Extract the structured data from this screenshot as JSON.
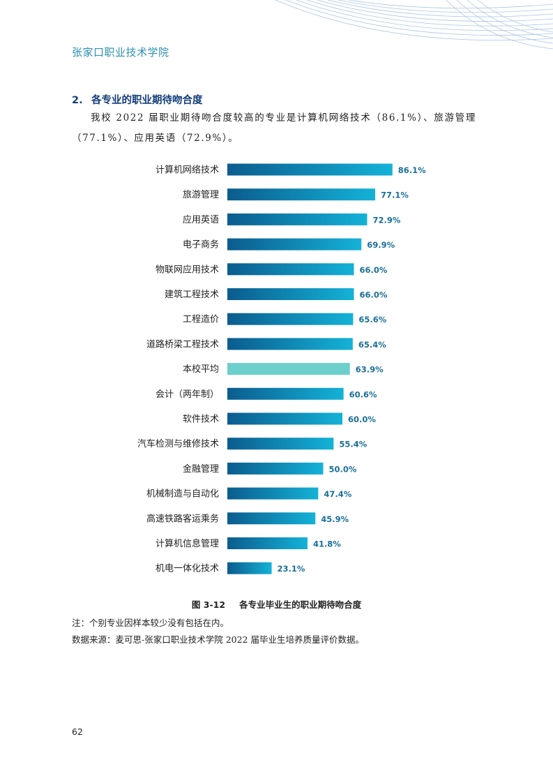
{
  "header": {
    "school_name": "张家口职业技术学院"
  },
  "section": {
    "number": "2.",
    "title": "各专业的职业期待吻合度"
  },
  "paragraph": "我校 2022 届职业期待吻合度较高的专业是计算机网络技术（86.1%）、旅游管理（77.1%）、应用英语（72.9%）。",
  "chart_data": {
    "type": "bar",
    "orientation": "horizontal",
    "categories": [
      "计算机网络技术",
      "旅游管理",
      "应用英语",
      "电子商务",
      "物联网应用技术",
      "建筑工程技术",
      "工程造价",
      "道路桥梁工程技术",
      "本校平均",
      "会计（两年制）",
      "软件技术",
      "汽车检测与维修技术",
      "金融管理",
      "机械制造与自动化",
      "高速铁路客运乘务",
      "计算机信息管理",
      "机电一体化技术"
    ],
    "values": [
      86.1,
      77.1,
      72.9,
      69.9,
      66.0,
      66.0,
      65.6,
      65.4,
      63.9,
      60.6,
      60.0,
      55.4,
      50.0,
      47.4,
      45.9,
      41.8,
      23.1
    ],
    "value_labels": [
      "86.1%",
      "77.1%",
      "72.9%",
      "69.9%",
      "66.0%",
      "66.0%",
      "65.6%",
      "65.4%",
      "63.9%",
      "60.6%",
      "60.0%",
      "55.4%",
      "50.0%",
      "47.4%",
      "45.9%",
      "41.8%",
      "23.1%"
    ],
    "highlight_category": "本校平均",
    "xlim": [
      0,
      100
    ],
    "colors": {
      "bar_start": "#0b5c8e",
      "bar_end": "#14b2d8",
      "highlight": "#6ccfcb",
      "label": "#1a6f9a"
    }
  },
  "caption": {
    "figure_no": "图 3-12",
    "title": "各专业毕业生的职业期待吻合度"
  },
  "notes": [
    "注：个别专业因样本较少没有包括在内。",
    "数据来源：麦可思-张家口职业技术学院 2022 届毕业生培养质量评价数据。"
  ],
  "page_number": "62"
}
